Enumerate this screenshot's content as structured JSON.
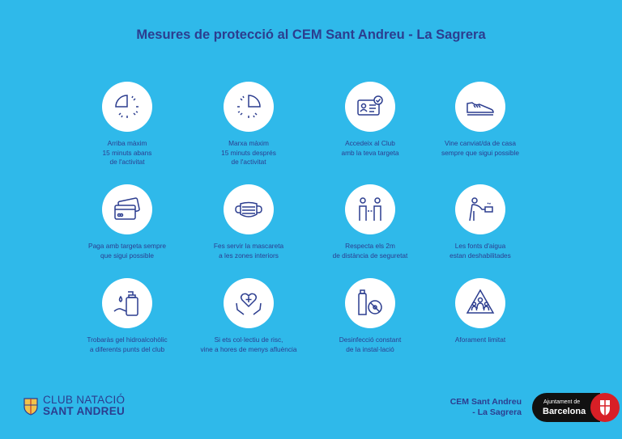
{
  "title": "Mesures de protecció al CEM Sant Andreu - La Sagrera",
  "items": [
    {
      "icon": "clock-quarter-icon",
      "caption": "Arriba màxim\n15 minuts abans\nde l'activitat"
    },
    {
      "icon": "clock-quarter-icon",
      "caption": "Marxa màxim\n15 minuts després\nde l'activitat"
    },
    {
      "icon": "id-card-icon",
      "caption": "Accedeix al Club\namb la teva targeta"
    },
    {
      "icon": "sneaker-icon",
      "caption": "Vine canviat/da de casa\nsempre que sigui possible"
    },
    {
      "icon": "credit-card-icon",
      "caption": "Paga amb targeta sempre\nque sigui possible"
    },
    {
      "icon": "face-mask-icon",
      "caption": "Fes servir la mascareta\na les zones interiors"
    },
    {
      "icon": "distance-icon",
      "caption": "Respecta els 2m\nde distància de seguretat"
    },
    {
      "icon": "water-fountain-icon",
      "caption": "Les fonts d'aigua\nestan deshabilitades"
    },
    {
      "icon": "hand-sanitizer-icon",
      "caption": "Trobaràs gel hidroalcohòlic\na diferents punts del club"
    },
    {
      "icon": "heart-hands-icon",
      "caption": "Si ets col·lectiu de risc,\nvine a hores de menys afluència"
    },
    {
      "icon": "disinfect-spray-icon",
      "caption": "Desinfecció constant\nde la instal·lació"
    },
    {
      "icon": "capacity-warning-icon",
      "caption": "Aforament limitat"
    }
  ],
  "footer": {
    "club_line1": "CLUB NATACIÓ",
    "club_line2": "SANT ANDREU",
    "venue": "CEM Sant Andreu\n- La Sagrera",
    "city_small": "Ajuntament de",
    "city_big": "Barcelona"
  },
  "colors": {
    "background": "#2fb9ea",
    "text": "#2c3d8f",
    "icon_bg": "#ffffff"
  }
}
